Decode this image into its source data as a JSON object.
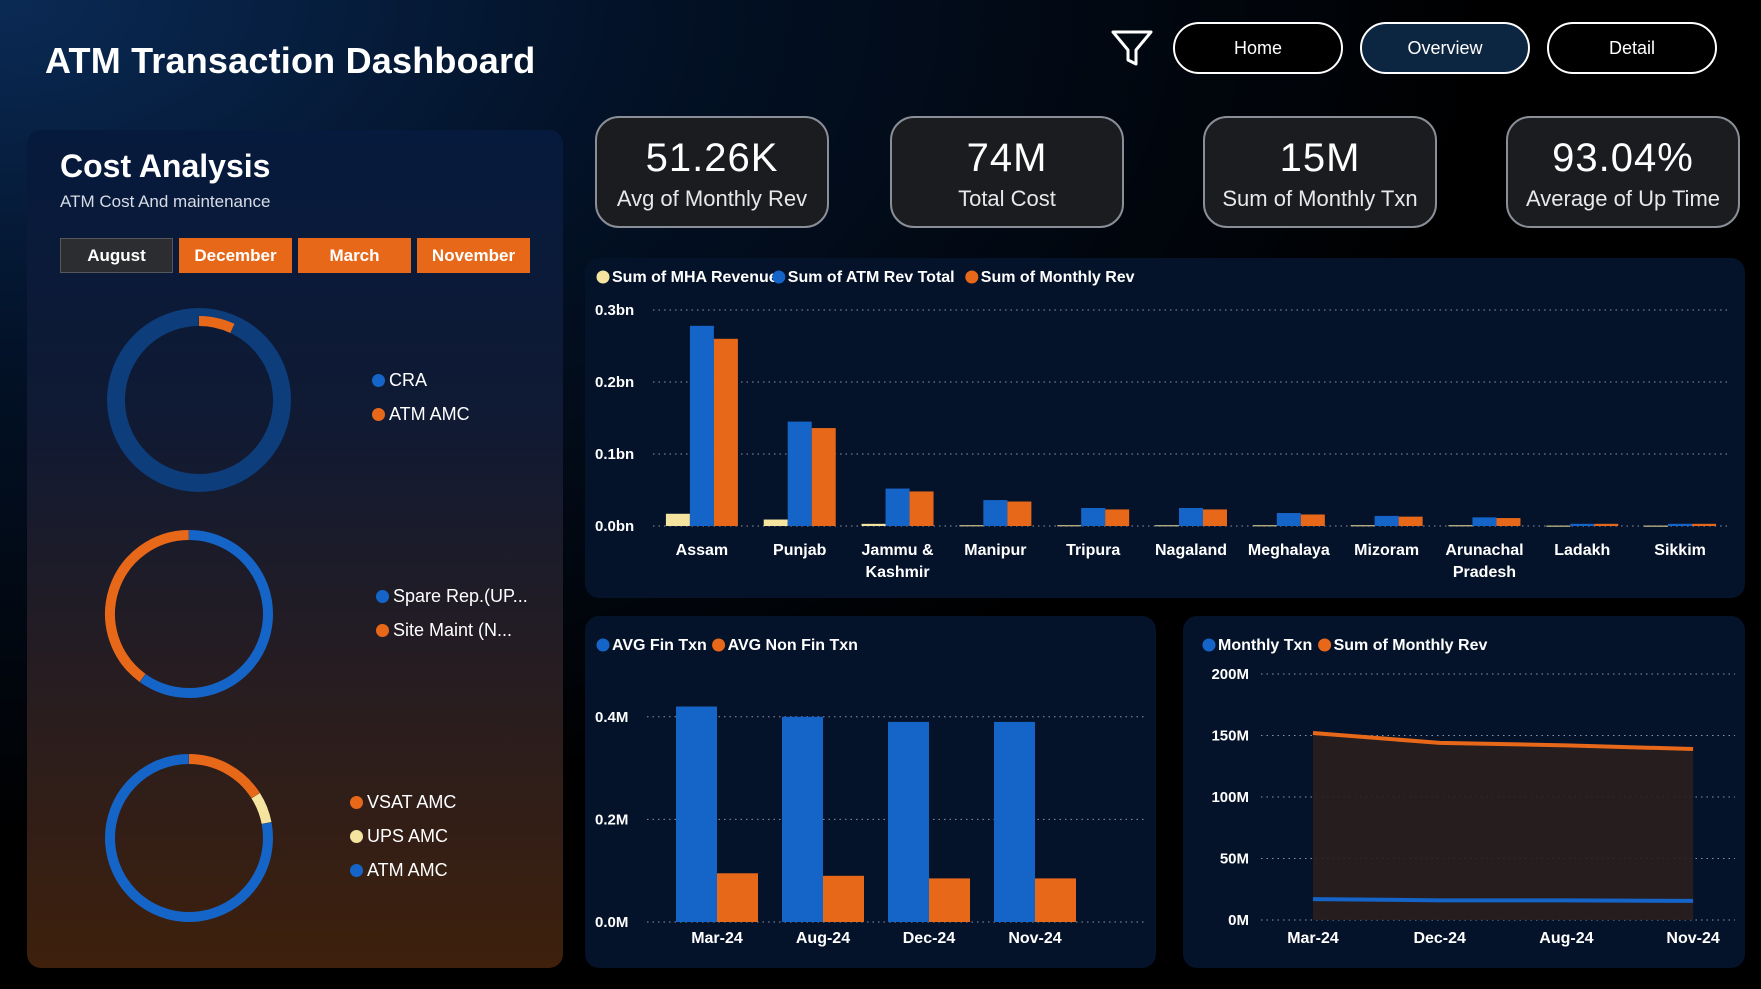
{
  "app": {
    "title": "ATM Transaction Dashboard",
    "nav": {
      "home": "Home",
      "overview": "Overview",
      "detail": "Detail"
    },
    "filter_icon": "filter-icon"
  },
  "colors": {
    "blue": "#1565c8",
    "orange": "#e8681a",
    "yellow": "#f5e4a0",
    "navy": "#0d3d7a"
  },
  "cost_panel": {
    "title": "Cost Analysis",
    "subtitle": "ATM Cost And maintenance",
    "months": [
      "August",
      "December",
      "March",
      "November"
    ],
    "selected_month": "August",
    "donuts": [
      {
        "legend": [
          "CRA",
          "ATM AMC"
        ],
        "fractions": [
          0.93,
          0.07
        ]
      },
      {
        "legend": [
          "Spare Rep.(UP...",
          "Site Maint (N..."
        ],
        "fractions": [
          0.6,
          0.4
        ]
      },
      {
        "legend": [
          "VSAT AMC",
          "UPS AMC",
          "ATM AMC"
        ],
        "fractions": [
          0.16,
          0.06,
          0.78
        ]
      }
    ]
  },
  "kpis": [
    {
      "value": "51.26K",
      "label": "Avg of Monthly Rev"
    },
    {
      "value": "74M",
      "label": "Total Cost"
    },
    {
      "value": "15M",
      "label": "Sum of Monthly Txn"
    },
    {
      "value": "93.04%",
      "label": "Average of Up Time"
    }
  ],
  "chart_data": [
    {
      "type": "bar",
      "title": "",
      "legend": [
        "Sum of MHA Revenue",
        "Sum of ATM Rev Total",
        "Sum of Monthly Rev"
      ],
      "categories": [
        "Assam",
        "Punjab",
        "Jammu & Kashmir",
        "Manipur",
        "Tripura",
        "Nagaland",
        "Meghalaya",
        "Mizoram",
        "Arunachal Pradesh",
        "Ladakh",
        "Sikkim"
      ],
      "category_lines": [
        [
          "Assam"
        ],
        [
          "Punjab"
        ],
        [
          "Jammu &",
          "Kashmir"
        ],
        [
          "Manipur"
        ],
        [
          "Tripura"
        ],
        [
          "Nagaland"
        ],
        [
          "Meghalaya"
        ],
        [
          "Mizoram"
        ],
        [
          "Arunachal",
          "Pradesh"
        ],
        [
          "Ladakh"
        ],
        [
          "Sikkim"
        ]
      ],
      "series": [
        {
          "name": "Sum of MHA Revenue",
          "values": [
            0.017,
            0.009,
            0.003,
            0.001,
            0.001,
            0.001,
            0.001,
            0.001,
            0.001,
            0.0005,
            0.0005
          ]
        },
        {
          "name": "Sum of ATM Rev Total",
          "values": [
            0.278,
            0.145,
            0.052,
            0.036,
            0.025,
            0.025,
            0.018,
            0.014,
            0.012,
            0.003,
            0.003
          ]
        },
        {
          "name": "Sum of Monthly Rev",
          "values": [
            0.26,
            0.136,
            0.048,
            0.034,
            0.023,
            0.023,
            0.016,
            0.013,
            0.011,
            0.003,
            0.003
          ]
        }
      ],
      "yticks": [
        "0.0bn",
        "0.1bn",
        "0.2bn",
        "0.3bn"
      ],
      "ylim": [
        0,
        0.3
      ]
    },
    {
      "type": "bar",
      "title": "",
      "legend": [
        "AVG Fin Txn",
        "AVG Non Fin Txn"
      ],
      "categories": [
        "Mar-24",
        "Aug-24",
        "Dec-24",
        "Nov-24"
      ],
      "series": [
        {
          "name": "AVG Fin Txn",
          "values": [
            0.42,
            0.4,
            0.39,
            0.39
          ]
        },
        {
          "name": "AVG Non Fin Txn",
          "values": [
            0.095,
            0.09,
            0.085,
            0.085
          ]
        }
      ],
      "yticks": [
        "0.0M",
        "0.2M",
        "0.4M"
      ],
      "ylim": [
        0,
        0.46
      ]
    },
    {
      "type": "line",
      "title": "",
      "legend": [
        "Monthly Txn",
        "Sum of Monthly Rev"
      ],
      "categories": [
        "Mar-24",
        "Dec-24",
        "Aug-24",
        "Nov-24"
      ],
      "series": [
        {
          "name": "Monthly Txn",
          "values": [
            17,
            16,
            16,
            15.5
          ]
        },
        {
          "name": "Sum of Monthly Rev",
          "values": [
            152,
            144,
            142,
            139
          ]
        }
      ],
      "yticks": [
        "0M",
        "50M",
        "100M",
        "150M",
        "200M"
      ],
      "ylim": [
        0,
        200
      ]
    }
  ]
}
